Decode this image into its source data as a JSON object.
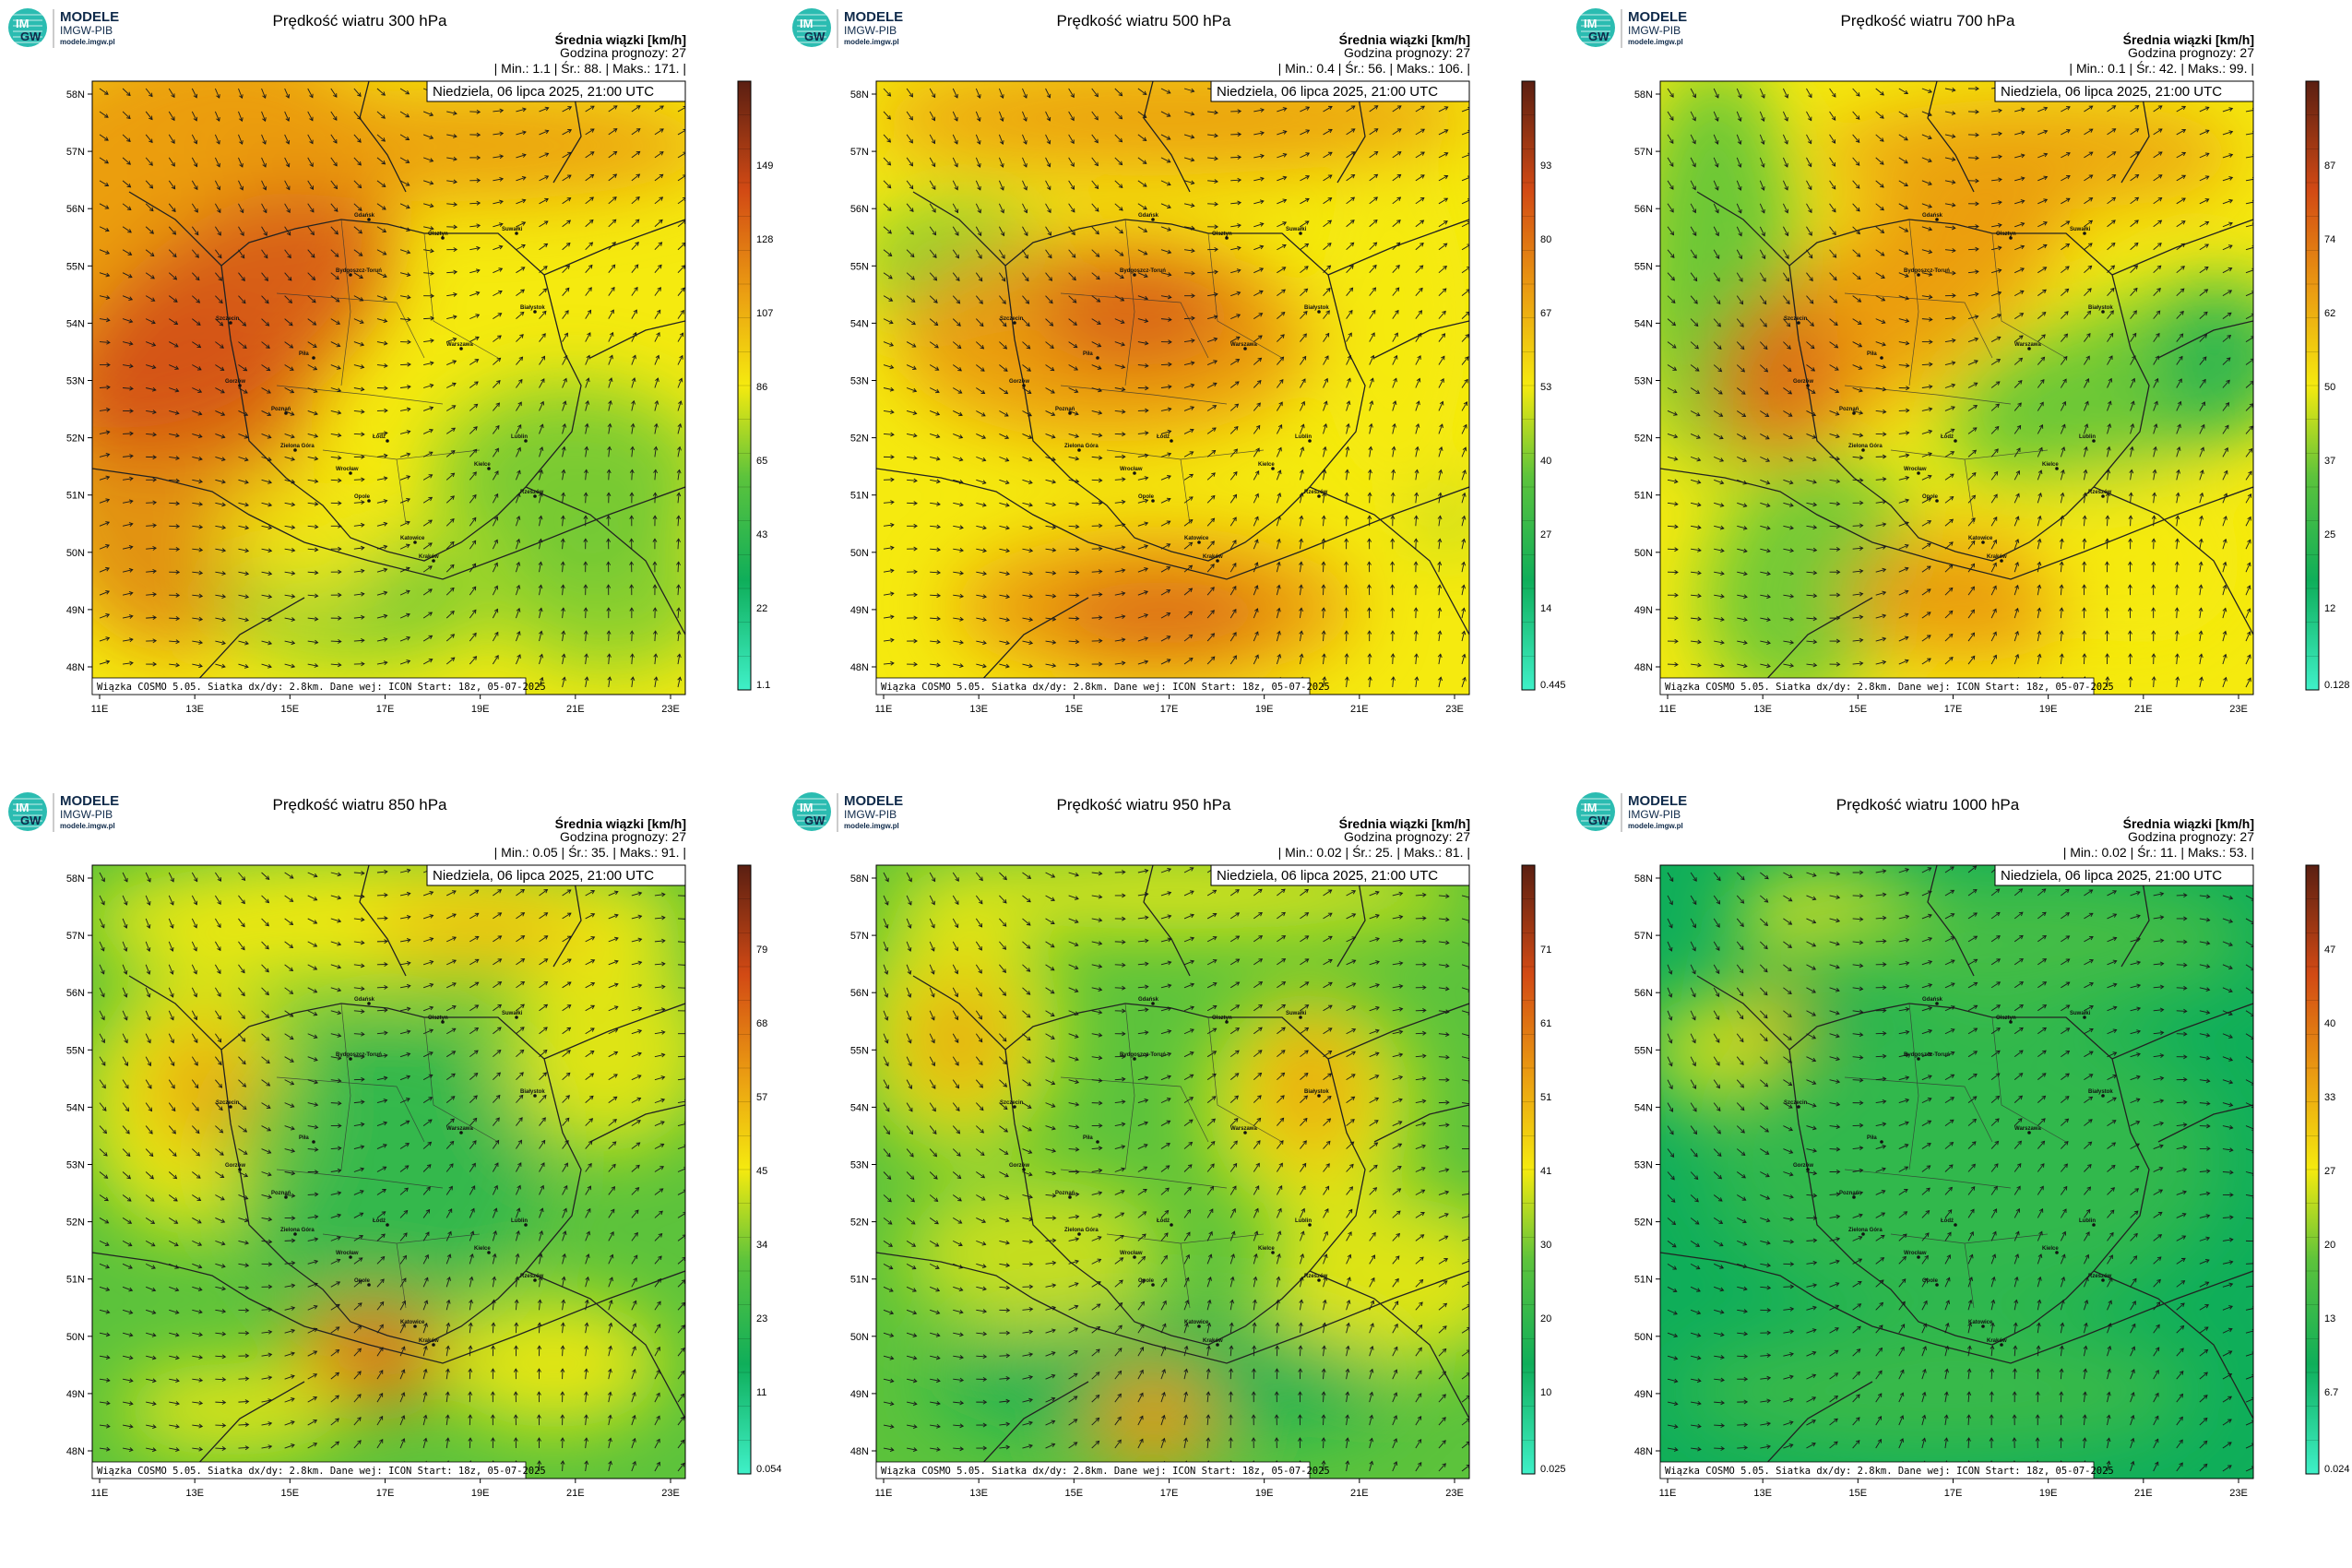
{
  "logo": {
    "title": "MODELE",
    "org": "IMGW-PIB",
    "url": "modele.imgw.pl",
    "mark_top": "IM",
    "mark_bottom": "GW"
  },
  "common": {
    "legend_title": "Średnia wiązki [km/h]",
    "forecast_hour": "Godzina prognozy: 27",
    "date": "Niedziela, 06 lipca 2025, 21:00 UTC",
    "footer": "Wiązka COSMO 5.05. Siatka dx/dy: 2.8km. Dane wej: ICON Start: 18z, 05-07-2025",
    "stat_min_label": "Min.:",
    "stat_avg_label": "Śr.:",
    "stat_max_label": "Maks.:",
    "lat_labels": [
      "58N",
      "57N",
      "56N",
      "55N",
      "54N",
      "53N",
      "52N",
      "51N",
      "50N",
      "49N",
      "48N"
    ],
    "lon_labels": [
      "11E",
      "13E",
      "15E",
      "17E",
      "19E",
      "21E",
      "23E"
    ],
    "cities": [
      "Gdańsk",
      "Olsztyn",
      "Suwałki",
      "Szczecin",
      "Bydgoszcz-Toruń",
      "Białystok",
      "Gorzów",
      "Piła",
      "Warszawa",
      "Poznań",
      "Zielona Góra",
      "Łódź",
      "Lublin",
      "Wrocław",
      "Opole",
      "Kielce",
      "Rzeszów",
      "Katowice",
      "Kraków"
    ],
    "colors": {
      "scale_bottom": "#3ff0c8",
      "low": "#0fae5a",
      "mid": "#5cc33c",
      "yellow": "#f5ea0f",
      "orange": "#ea9a12",
      "red": "#d24a14",
      "dark": "#5a1f12"
    }
  },
  "panels": [
    {
      "title": "Prędkość wiatru 300 hPa",
      "min": "1.1",
      "avg": "88.",
      "max": "171.",
      "colorbar_labels": [
        "149",
        "128",
        "107",
        "86",
        "65",
        "43",
        "22",
        "1.1"
      ],
      "field": "upper-jet"
    },
    {
      "title": "Prędkość wiatru 500 hPa",
      "min": "0.4",
      "avg": "56.",
      "max": "106.",
      "colorbar_labels": [
        "93",
        "80",
        "67",
        "53",
        "40",
        "27",
        "14",
        "0.445"
      ],
      "field": "mid-jet"
    },
    {
      "title": "Prędkość wiatru 700 hPa",
      "min": "0.1",
      "avg": "42.",
      "max": "99.",
      "colorbar_labels": [
        "87",
        "74",
        "62",
        "50",
        "37",
        "25",
        "12",
        "0.128"
      ],
      "field": "700"
    },
    {
      "title": "Prędkość wiatru 850 hPa",
      "min": "0.05",
      "avg": "35.",
      "max": "91.",
      "colorbar_labels": [
        "79",
        "68",
        "57",
        "45",
        "34",
        "23",
        "11",
        "0.054"
      ],
      "field": "850"
    },
    {
      "title": "Prędkość wiatru 950 hPa",
      "min": "0.02",
      "avg": "25.",
      "max": "81.",
      "colorbar_labels": [
        "71",
        "61",
        "51",
        "41",
        "30",
        "20",
        "10",
        "0.025"
      ],
      "field": "950"
    },
    {
      "title": "Prędkość wiatru 1000 hPa",
      "min": "0.02",
      "avg": "11.",
      "max": "53.",
      "colorbar_labels": [
        "47",
        "40",
        "33",
        "27",
        "20",
        "13",
        "6.7",
        "0.024"
      ],
      "field": "1000"
    }
  ]
}
